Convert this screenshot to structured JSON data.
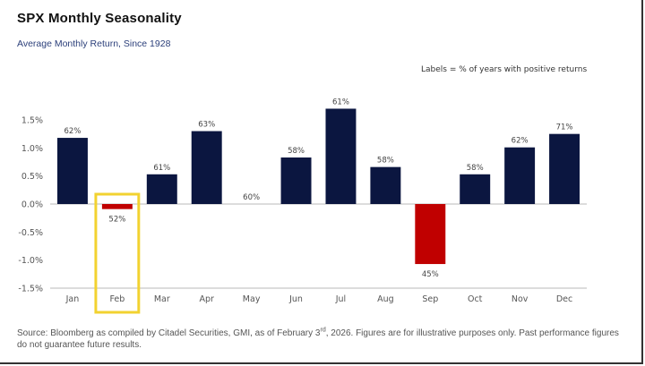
{
  "header": {
    "title": "SPX Monthly Seasonality",
    "subtitle": "Average Monthly Return, Since 1928",
    "note": "Labels = % of years with positive returns"
  },
  "footer": {
    "source_part1": "Source: Bloomberg as compiled by Citadel Securities, GMI, as of February 3",
    "source_sup": "rd",
    "source_part2": ", 2026. Figures are for illustrative purposes only. Past performance figures do not guarantee future results."
  },
  "colors": {
    "positive": "#0b1640",
    "negative": "#c00000",
    "highlight_box": "#f2d230",
    "axis": "#c8c8c8"
  },
  "chart_data": {
    "type": "bar",
    "title": "SPX Monthly Seasonality",
    "subtitle": "Average Monthly Return, Since 1928",
    "xlabel": "",
    "ylabel": "Average Monthly Return",
    "categories": [
      "Jan",
      "Feb",
      "Mar",
      "Apr",
      "May",
      "Jun",
      "Jul",
      "Aug",
      "Sep",
      "Oct",
      "Nov",
      "Dec"
    ],
    "values": [
      1.18,
      -0.09,
      0.53,
      1.3,
      0.0,
      0.83,
      1.7,
      0.66,
      -1.07,
      0.53,
      1.01,
      1.25
    ],
    "value_unit": "%",
    "data_labels": [
      "62%",
      "52%",
      "61%",
      "63%",
      "60%",
      "58%",
      "61%",
      "58%",
      "45%",
      "58%",
      "62%",
      "71%"
    ],
    "data_labels_meaning": "% of years with positive returns",
    "ylim": [
      -1.5,
      1.5
    ],
    "yticks": [
      1.5,
      1.0,
      0.5,
      0.0,
      -0.5,
      -1.0,
      -1.5
    ],
    "ytick_labels": [
      "1.5%",
      "1.0%",
      "0.5%",
      "0.0%",
      "-0.5%",
      "-1.0%",
      "-1.5%"
    ],
    "grid": false,
    "highlighted_category": "Feb",
    "annotation": "Labels = % of years with positive returns"
  }
}
